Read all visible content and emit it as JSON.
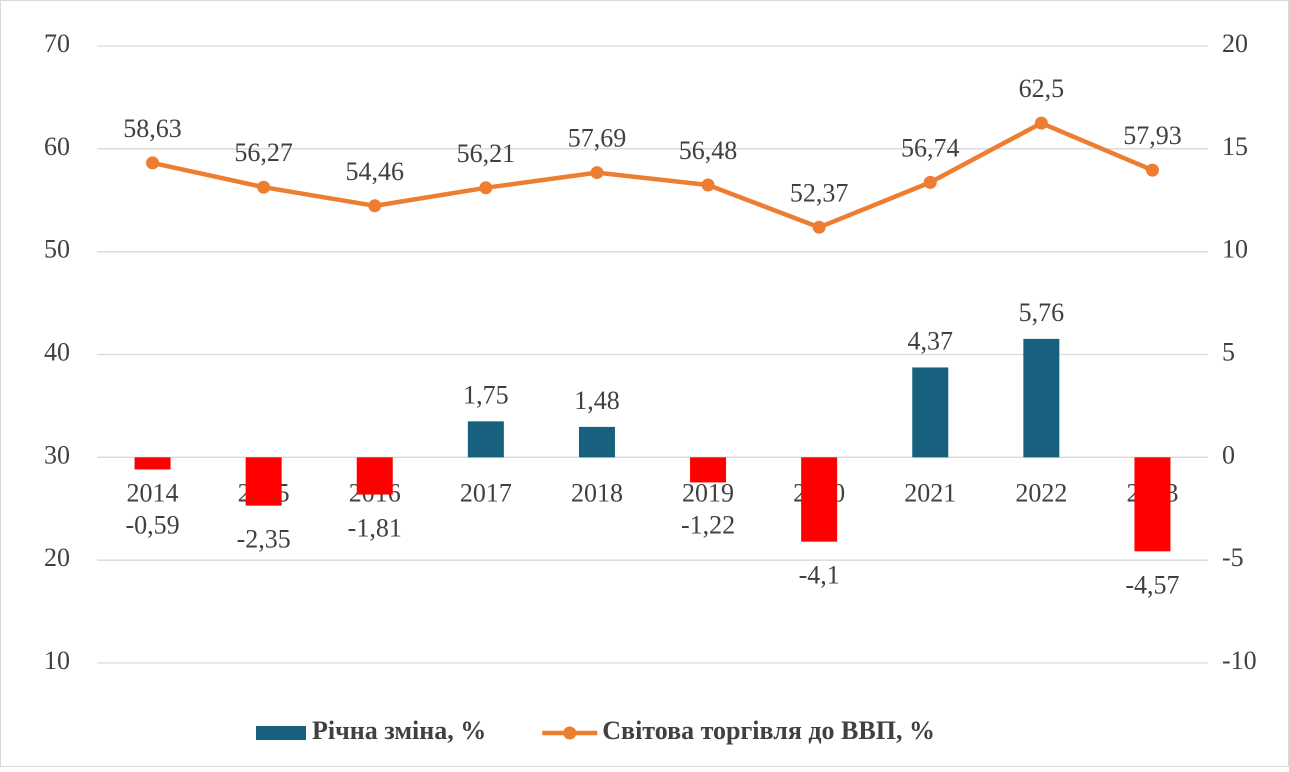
{
  "chart_data": {
    "type": "combo",
    "categories": [
      "2014",
      "2015",
      "2016",
      "2017",
      "2018",
      "2019",
      "2020",
      "2021",
      "2022",
      "2023"
    ],
    "series": [
      {
        "name": "Річна зміна, %",
        "type": "bar",
        "axis": "y2",
        "color": "#17607e",
        "negative_color": "#ff0000",
        "values": [
          -0.59,
          -2.35,
          -1.81,
          1.75,
          1.48,
          -1.22,
          -4.1,
          4.37,
          5.76,
          -4.57
        ],
        "value_labels": [
          "-0,59",
          "-2,35",
          "-1,81",
          "1,75",
          "1,48",
          "-1,22",
          "-4,1",
          "4,37",
          "5,76",
          "-4,57"
        ]
      },
      {
        "name": "Світова торгівля до ВВП, %",
        "type": "line",
        "color": "#ed7d31",
        "values": [
          58.63,
          56.27,
          54.46,
          56.21,
          57.69,
          56.48,
          52.37,
          56.74,
          62.5,
          57.93
        ],
        "value_labels": [
          "58,63",
          "56,27",
          "54,46",
          "56,21",
          "57,69",
          "56,48",
          "52,37",
          "56,74",
          "62,5",
          "57,93"
        ]
      }
    ],
    "ylim": [
      10,
      70
    ],
    "yticks": [
      10,
      20,
      30,
      40,
      50,
      60,
      70
    ],
    "y2lim": [
      -10,
      20
    ],
    "y2ticks": [
      -10,
      -5,
      0,
      5,
      10,
      15,
      20
    ],
    "grid": true,
    "legend": "bottom"
  }
}
